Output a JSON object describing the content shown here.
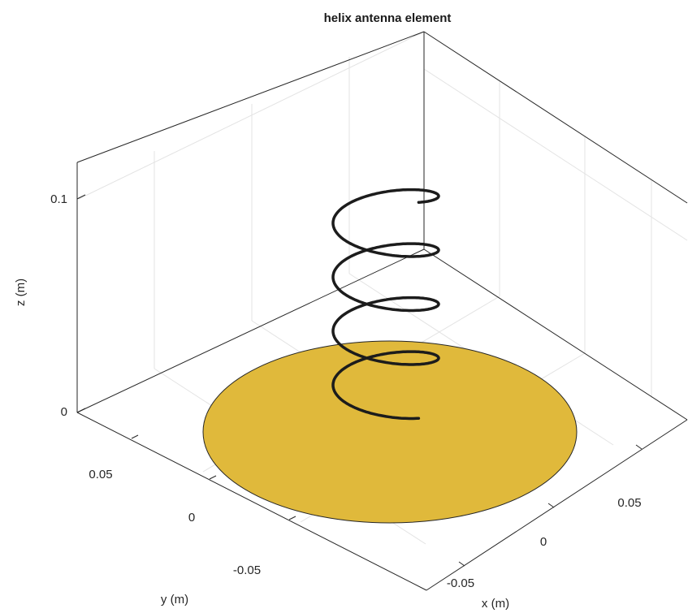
{
  "title": "helix antenna element",
  "axes": {
    "x": {
      "label": "x (m)",
      "ticks": [
        {
          "value": -0.05,
          "label": "-0.05"
        },
        {
          "value": 0,
          "label": "0"
        },
        {
          "value": 0.05,
          "label": "0.05"
        }
      ]
    },
    "y": {
      "label": "y (m)",
      "ticks": [
        {
          "value": 0.05,
          "label": "0.05"
        },
        {
          "value": 0,
          "label": "0"
        },
        {
          "value": -0.05,
          "label": "-0.05"
        }
      ]
    },
    "z": {
      "label": "z (m)",
      "ticks": [
        {
          "value": 0,
          "label": "0"
        },
        {
          "value": 0.1,
          "label": "0.1"
        }
      ]
    }
  },
  "colors": {
    "ground_plane": "#e0b93b",
    "helix": "#1c1c1c",
    "box": "#262626",
    "grid": "#e3e3e3"
  },
  "components": {
    "ground_plane": "disc",
    "helix_turns": 4
  }
}
